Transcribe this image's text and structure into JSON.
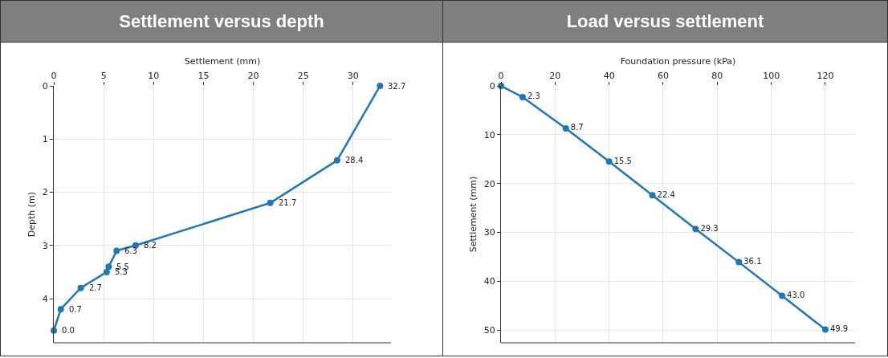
{
  "chart_data": [
    {
      "type": "line",
      "title": "Settlement versus depth",
      "xlabel": "Settlement (mm)",
      "ylabel": "Depth (m)",
      "x": [
        32.7,
        28.4,
        21.7,
        8.2,
        6.3,
        5.5,
        5.3,
        2.7,
        0.7,
        0.0
      ],
      "values": [
        0,
        1.4,
        2.2,
        3.0,
        3.1,
        3.4,
        3.5,
        3.8,
        4.2,
        4.6
      ],
      "annotations": [
        {
          "text": "32.7",
          "x": 32.7,
          "y": 0
        },
        {
          "text": "28.4",
          "x": 28.4,
          "y": 1.4
        },
        {
          "text": "21.7",
          "x": 21.7,
          "y": 2.2
        },
        {
          "text": "8.2",
          "x": 8.2,
          "y": 3.0
        },
        {
          "text": "6.3",
          "x": 6.3,
          "y": 3.1
        },
        {
          "text": "5.5",
          "x": 5.5,
          "y": 3.4
        },
        {
          "text": "5.3",
          "x": 5.3,
          "y": 3.5
        },
        {
          "text": "2.7",
          "x": 2.7,
          "y": 3.8
        },
        {
          "text": "0.7",
          "x": 0.7,
          "y": 4.2
        },
        {
          "text": "0.0",
          "x": 0.0,
          "y": 4.6
        }
      ],
      "color": "#1f77b4",
      "marker": "circle",
      "grid": true,
      "xlim": [
        0,
        33.8
      ],
      "xticks": [
        0,
        5,
        10,
        15,
        20,
        25,
        30
      ],
      "ylim": [
        4.83,
        0
      ],
      "yticks": [
        0,
        1,
        2,
        3,
        4
      ]
    },
    {
      "type": "line",
      "title": "Load versus settlement",
      "xlabel": "Foundation pressure (kPa)",
      "ylabel": "Settlement (mm)",
      "x": [
        0,
        8,
        24,
        40,
        56,
        72,
        88,
        104,
        120
      ],
      "values": [
        0,
        2.3,
        8.7,
        15.5,
        22.4,
        29.3,
        36.1,
        43.0,
        49.9
      ],
      "value_labels": [
        null,
        "2.3",
        "8.7",
        "15.5",
        "22.4",
        "29.3",
        "36.1",
        "43.0",
        "49.9"
      ],
      "color": "#1f77b4",
      "marker": "circle",
      "grid": true,
      "xlim": [
        0,
        131
      ],
      "xticks": [
        0,
        20,
        40,
        60,
        80,
        100,
        120
      ],
      "ylim": [
        52.6,
        0
      ],
      "yticks": [
        0,
        10,
        20,
        30,
        40,
        50
      ]
    }
  ]
}
